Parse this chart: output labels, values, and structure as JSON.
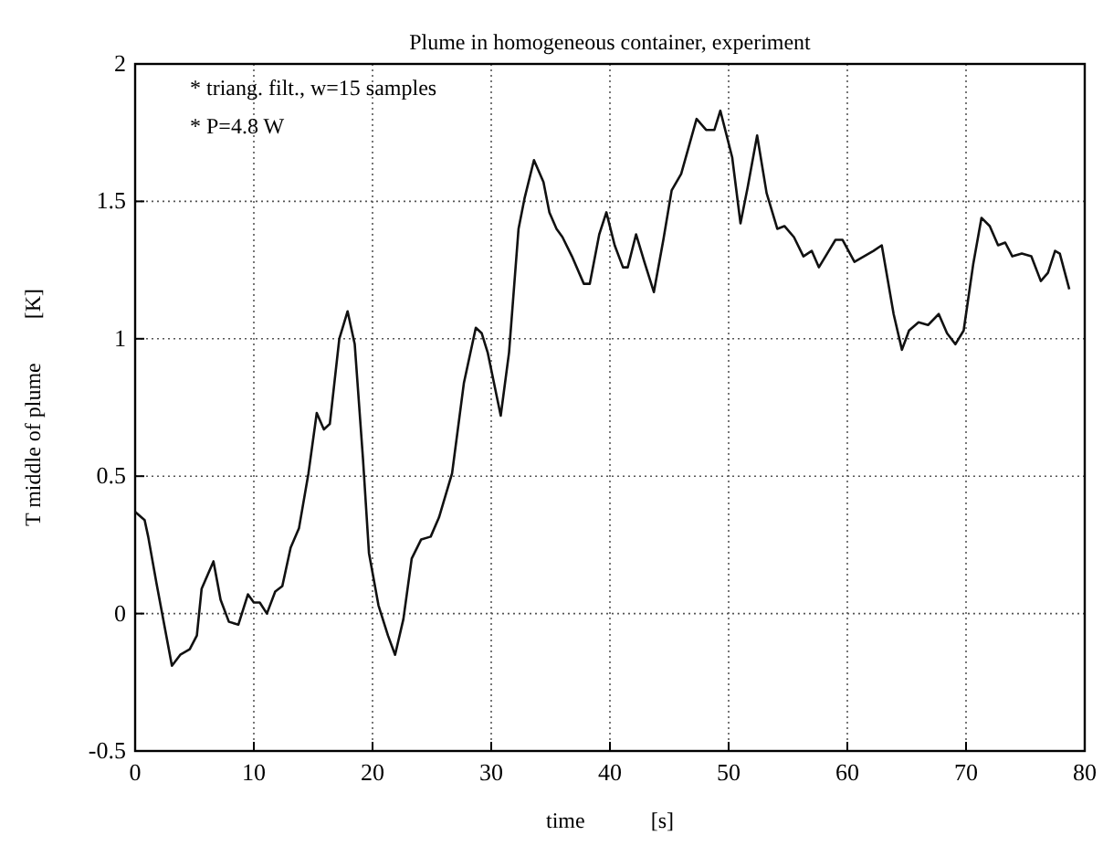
{
  "chart_data": {
    "type": "line",
    "title": "Plume in homogeneous container, experiment",
    "xlabel": "time            [s]",
    "ylabel": "T middle of plume        [K]",
    "annotations": [
      "* triang. filt., w=15 samples",
      "* P=4.8 W"
    ],
    "xlim": [
      0,
      80
    ],
    "xticks": [
      0,
      10,
      20,
      30,
      40,
      50,
      60,
      70,
      80
    ],
    "ylim": [
      -0.5,
      2
    ],
    "yticks": [
      -0.5,
      0,
      0.5,
      1,
      1.5,
      2
    ],
    "grid": true,
    "series": [
      {
        "color": "#111111",
        "x": [
          0,
          0.8,
          1.1,
          1.8,
          3.1,
          3.8,
          4.6,
          5.2,
          5.6,
          6.6,
          7.2,
          7.9,
          8.7,
          9.5,
          10,
          10.5,
          11.1,
          11.8,
          12.4,
          13.1,
          13.8,
          14.6,
          15.3,
          15.9,
          16.4,
          17.2,
          17.9,
          18.5,
          19.2,
          19.7,
          20.5,
          21.3,
          21.9,
          22.6,
          23.3,
          24.1,
          24.9,
          25.6,
          26.7,
          27.7,
          28.7,
          29.2,
          29.7,
          30.8,
          31.5,
          32.3,
          32.8,
          33.6,
          34.4,
          34.9,
          35.5,
          36.0,
          36.8,
          37.8,
          38.3,
          39.1,
          39.7,
          40.4,
          41.1,
          41.5,
          42.2,
          42.9,
          43.7,
          44.5,
          45.2,
          46.0,
          47.3,
          48.1,
          48.8,
          49.3,
          50.3,
          51.0,
          51.6,
          52.4,
          53.2,
          54.1,
          54.7,
          55.5,
          56.3,
          57.0,
          57.6,
          58.3,
          59.0,
          59.6,
          60.6,
          61.4,
          62.2,
          62.9,
          63.9,
          64.6,
          65.2,
          66.0,
          66.8,
          67.7,
          68.4,
          69.1,
          69.8,
          70.6,
          71.3,
          72.0,
          72.7,
          73.3,
          73.9,
          74.7,
          75.5,
          76.3,
          76.9,
          77.5,
          77.9,
          78.7
        ],
        "values": [
          0.37,
          0.34,
          0.28,
          0.11,
          -0.19,
          -0.15,
          -0.13,
          -0.08,
          0.09,
          0.19,
          0.05,
          -0.03,
          -0.04,
          0.07,
          0.04,
          0.04,
          0.0,
          0.08,
          0.1,
          0.24,
          0.31,
          0.51,
          0.73,
          0.67,
          0.69,
          1.0,
          1.1,
          0.98,
          0.56,
          0.22,
          0.03,
          -0.08,
          -0.15,
          -0.02,
          0.2,
          0.27,
          0.28,
          0.35,
          0.51,
          0.84,
          1.04,
          1.02,
          0.95,
          0.72,
          0.95,
          1.4,
          1.51,
          1.65,
          1.57,
          1.46,
          1.4,
          1.37,
          1.3,
          1.2,
          1.2,
          1.38,
          1.46,
          1.34,
          1.26,
          1.26,
          1.38,
          1.28,
          1.17,
          1.36,
          1.54,
          1.6,
          1.8,
          1.76,
          1.76,
          1.83,
          1.66,
          1.42,
          1.55,
          1.74,
          1.53,
          1.4,
          1.41,
          1.37,
          1.3,
          1.32,
          1.26,
          1.31,
          1.36,
          1.36,
          1.28,
          1.3,
          1.32,
          1.34,
          1.09,
          0.96,
          1.03,
          1.06,
          1.05,
          1.09,
          1.02,
          0.98,
          1.03,
          1.27,
          1.44,
          1.41,
          1.34,
          1.35,
          1.3,
          1.31,
          1.3,
          1.21,
          1.24,
          1.32,
          1.31,
          1.18
        ]
      }
    ]
  }
}
